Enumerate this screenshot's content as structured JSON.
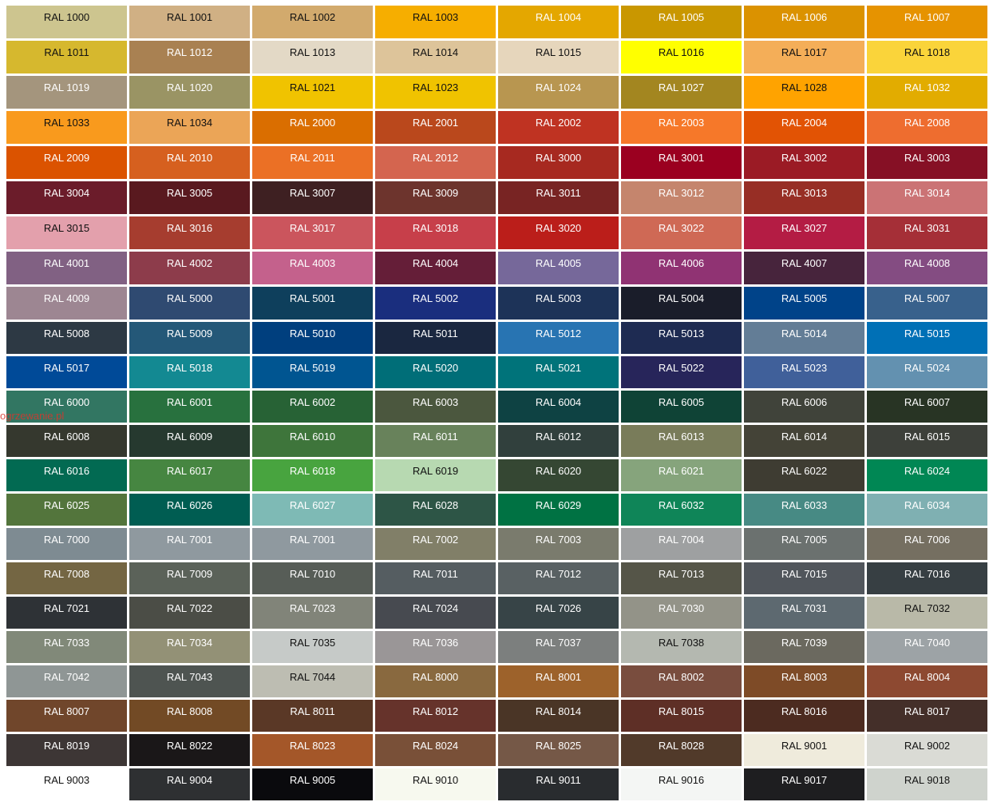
{
  "watermark": "ogrzewanie.pl",
  "rows": [
    [
      {
        "label": "RAL 1000",
        "color": "#CDC58F",
        "dark": true
      },
      {
        "label": "RAL 1001",
        "color": "#D0B084",
        "dark": true
      },
      {
        "label": "RAL 1002",
        "color": "#D2AA6D",
        "dark": true
      },
      {
        "label": "RAL 1003",
        "color": "#F6AE00",
        "dark": true
      },
      {
        "label": "RAL 1004",
        "color": "#E4A700"
      },
      {
        "label": "RAL 1005",
        "color": "#C99700"
      },
      {
        "label": "RAL 1006",
        "color": "#DB9200"
      },
      {
        "label": "RAL 1007",
        "color": "#E69300"
      }
    ],
    [
      {
        "label": "RAL 1011",
        "color": "#D6B82E",
        "dark": true
      },
      {
        "label": "RAL 1012",
        "color": "#A98152"
      },
      {
        "label": "RAL 1013",
        "color": "#E3D9C6",
        "dark": true
      },
      {
        "label": "RAL 1014",
        "color": "#DDC49A",
        "dark": true
      },
      {
        "label": "RAL 1015",
        "color": "#E6D6BC",
        "dark": true
      },
      {
        "label": "RAL 1016",
        "color": "#FFFF00",
        "dark": true
      },
      {
        "label": "RAL 1017",
        "color": "#F4AE58",
        "dark": true
      },
      {
        "label": "RAL 1018",
        "color": "#FAD43A",
        "dark": true
      }
    ],
    [
      {
        "label": "RAL 1019",
        "color": "#A4957D"
      },
      {
        "label": "RAL 1020",
        "color": "#9A9464"
      },
      {
        "label": "RAL 1021",
        "color": "#F0C300",
        "dark": true
      },
      {
        "label": "RAL 1023",
        "color": "#F0C300",
        "dark": true
      },
      {
        "label": "RAL 1024",
        "color": "#B89650"
      },
      {
        "label": "RAL 1027",
        "color": "#A38620"
      },
      {
        "label": "RAL 1028",
        "color": "#FFA300",
        "dark": true
      },
      {
        "label": "RAL 1032",
        "color": "#E2AC00"
      }
    ],
    [
      {
        "label": "RAL 1033",
        "color": "#F99A1D",
        "dark": true
      },
      {
        "label": "RAL 1034",
        "color": "#EBA557",
        "dark": true
      },
      {
        "label": "RAL 2000",
        "color": "#DA6E00"
      },
      {
        "label": "RAL 2001",
        "color": "#BA481C"
      },
      {
        "label": "RAL 2002",
        "color": "#BF3322"
      },
      {
        "label": "RAL 2003",
        "color": "#F67829"
      },
      {
        "label": "RAL 2004",
        "color": "#E25304"
      },
      {
        "label": "RAL 2008",
        "color": "#EE6D2F"
      }
    ],
    [
      {
        "label": "RAL 2009",
        "color": "#DB5300"
      },
      {
        "label": "RAL 2010",
        "color": "#D6601F"
      },
      {
        "label": "RAL 2011",
        "color": "#EB7025"
      },
      {
        "label": "RAL 2012",
        "color": "#D4654F"
      },
      {
        "label": "RAL 3000",
        "color": "#A72920"
      },
      {
        "label": "RAL 3001",
        "color": "#9B0020"
      },
      {
        "label": "RAL 3002",
        "color": "#9B1B25"
      },
      {
        "label": "RAL 3003",
        "color": "#861025"
      }
    ],
    [
      {
        "label": "RAL 3004",
        "color": "#6B1C2A"
      },
      {
        "label": "RAL 3005",
        "color": "#59191F"
      },
      {
        "label": "RAL 3007",
        "color": "#3E2022"
      },
      {
        "label": "RAL 3009",
        "color": "#6D342D"
      },
      {
        "label": "RAL 3011",
        "color": "#782423"
      },
      {
        "label": "RAL 3012",
        "color": "#C5856D"
      },
      {
        "label": "RAL 3013",
        "color": "#972E25"
      },
      {
        "label": "RAL 3014",
        "color": "#CB7375"
      }
    ],
    [
      {
        "label": "RAL 3015",
        "color": "#E3A0AC",
        "dark": true
      },
      {
        "label": "RAL 3016",
        "color": "#A63D2F"
      },
      {
        "label": "RAL 3017",
        "color": "#CB555D"
      },
      {
        "label": "RAL 3018",
        "color": "#C73F4A"
      },
      {
        "label": "RAL 3020",
        "color": "#BB1E1A"
      },
      {
        "label": "RAL 3022",
        "color": "#CF6955"
      },
      {
        "label": "RAL 3027",
        "color": "#B41C44"
      },
      {
        "label": "RAL 3031",
        "color": "#A52F37"
      }
    ],
    [
      {
        "label": "RAL 4001",
        "color": "#816183"
      },
      {
        "label": "RAL 4002",
        "color": "#8D3C4B"
      },
      {
        "label": "RAL 4003",
        "color": "#C4618C"
      },
      {
        "label": "RAL 4004",
        "color": "#651E38"
      },
      {
        "label": "RAL 4005",
        "color": "#76689A"
      },
      {
        "label": "RAL 4006",
        "color": "#903373"
      },
      {
        "label": "RAL 4007",
        "color": "#47243C"
      },
      {
        "label": "RAL 4008",
        "color": "#844C82"
      }
    ],
    [
      {
        "label": "RAL 4009",
        "color": "#9D8692"
      },
      {
        "label": "RAL 5000",
        "color": "#2F4A71"
      },
      {
        "label": "RAL 5001",
        "color": "#0E3F5C"
      },
      {
        "label": "RAL 5002",
        "color": "#1A2E7E"
      },
      {
        "label": "RAL 5003",
        "color": "#1D3358"
      },
      {
        "label": "RAL 5004",
        "color": "#1A1D2A"
      },
      {
        "label": "RAL 5005",
        "color": "#004389"
      },
      {
        "label": "RAL 5007",
        "color": "#38618C"
      }
    ],
    [
      {
        "label": "RAL 5008",
        "color": "#2D3944"
      },
      {
        "label": "RAL 5009",
        "color": "#245878"
      },
      {
        "label": "RAL 5010",
        "color": "#003F7E"
      },
      {
        "label": "RAL 5011",
        "color": "#1A2740"
      },
      {
        "label": "RAL 5012",
        "color": "#2874B2"
      },
      {
        "label": "RAL 5013",
        "color": "#1E2B52"
      },
      {
        "label": "RAL 5014",
        "color": "#637D96"
      },
      {
        "label": "RAL 5015",
        "color": "#0070B6"
      }
    ],
    [
      {
        "label": "RAL 5017",
        "color": "#004A98"
      },
      {
        "label": "RAL 5018",
        "color": "#138992"
      },
      {
        "label": "RAL 5019",
        "color": "#005591"
      },
      {
        "label": "RAL 5020",
        "color": "#006E78"
      },
      {
        "label": "RAL 5021",
        "color": "#00737A"
      },
      {
        "label": "RAL 5022",
        "color": "#27255A"
      },
      {
        "label": "RAL 5023",
        "color": "#40609A"
      },
      {
        "label": "RAL 5024",
        "color": "#6391B0"
      }
    ],
    [
      {
        "label": "RAL 6000",
        "color": "#327662"
      },
      {
        "label": "RAL 6001",
        "color": "#28713E"
      },
      {
        "label": "RAL 6002",
        "color": "#276235"
      },
      {
        "label": "RAL 6003",
        "color": "#4B573E"
      },
      {
        "label": "RAL 6004",
        "color": "#0E4243"
      },
      {
        "label": "RAL 6005",
        "color": "#0F4336"
      },
      {
        "label": "RAL 6006",
        "color": "#40433A"
      },
      {
        "label": "RAL 6007",
        "color": "#283424"
      }
    ],
    [
      {
        "label": "RAL 6008",
        "color": "#35382E"
      },
      {
        "label": "RAL 6009",
        "color": "#26392F"
      },
      {
        "label": "RAL 6010",
        "color": "#3E753B"
      },
      {
        "label": "RAL 6011",
        "color": "#68825B"
      },
      {
        "label": "RAL 6012",
        "color": "#31403D"
      },
      {
        "label": "RAL 6013",
        "color": "#797C5A"
      },
      {
        "label": "RAL 6014",
        "color": "#444337"
      },
      {
        "label": "RAL 6015",
        "color": "#3D403A"
      }
    ],
    [
      {
        "label": "RAL 6016",
        "color": "#026A52"
      },
      {
        "label": "RAL 6017",
        "color": "#468641"
      },
      {
        "label": "RAL 6018",
        "color": "#48A43F"
      },
      {
        "label": "RAL 6019",
        "color": "#B7D9B1",
        "dark": true
      },
      {
        "label": "RAL 6020",
        "color": "#354733"
      },
      {
        "label": "RAL 6021",
        "color": "#86A47C"
      },
      {
        "label": "RAL 6022",
        "color": "#3E3C32"
      },
      {
        "label": "RAL 6024",
        "color": "#008754"
      }
    ],
    [
      {
        "label": "RAL 6025",
        "color": "#53753C"
      },
      {
        "label": "RAL 6026",
        "color": "#005D52"
      },
      {
        "label": "RAL 6027",
        "color": "#7EBAB5"
      },
      {
        "label": "RAL 6028",
        "color": "#2D5546"
      },
      {
        "label": "RAL 6029",
        "color": "#007243"
      },
      {
        "label": "RAL 6032",
        "color": "#0F8558"
      },
      {
        "label": "RAL 6033",
        "color": "#478A84"
      },
      {
        "label": "RAL 6034",
        "color": "#7FB0B2"
      }
    ],
    [
      {
        "label": "RAL 7000",
        "color": "#7E8B92"
      },
      {
        "label": "RAL 7001",
        "color": "#8F999F"
      },
      {
        "label": "RAL 7001",
        "color": "#8F999F"
      },
      {
        "label": "RAL 7002",
        "color": "#817F68"
      },
      {
        "label": "RAL 7003",
        "color": "#7A7B6D"
      },
      {
        "label": "RAL 7004",
        "color": "#9EA0A1"
      },
      {
        "label": "RAL 7005",
        "color": "#6B716F"
      },
      {
        "label": "RAL 7006",
        "color": "#756F61"
      }
    ],
    [
      {
        "label": "RAL 7008",
        "color": "#746643"
      },
      {
        "label": "RAL 7009",
        "color": "#5B6259"
      },
      {
        "label": "RAL 7010",
        "color": "#575D57"
      },
      {
        "label": "RAL 7011",
        "color": "#555D61"
      },
      {
        "label": "RAL 7012",
        "color": "#596163"
      },
      {
        "label": "RAL 7013",
        "color": "#555548"
      },
      {
        "label": "RAL 7015",
        "color": "#51565C"
      },
      {
        "label": "RAL 7016",
        "color": "#373F43"
      }
    ],
    [
      {
        "label": "RAL 7021",
        "color": "#2E3236"
      },
      {
        "label": "RAL 7022",
        "color": "#4B4D46"
      },
      {
        "label": "RAL 7023",
        "color": "#818479"
      },
      {
        "label": "RAL 7024",
        "color": "#474A50"
      },
      {
        "label": "RAL 7026",
        "color": "#374447"
      },
      {
        "label": "RAL 7030",
        "color": "#939388"
      },
      {
        "label": "RAL 7031",
        "color": "#5D6970"
      },
      {
        "label": "RAL 7032",
        "color": "#B9B9A8",
        "dark": true
      }
    ],
    [
      {
        "label": "RAL 7033",
        "color": "#818979"
      },
      {
        "label": "RAL 7034",
        "color": "#939176"
      },
      {
        "label": "RAL 7035",
        "color": "#C6CAC8",
        "dark": true
      },
      {
        "label": "RAL 7036",
        "color": "#9A9697"
      },
      {
        "label": "RAL 7037",
        "color": "#7C7F7E"
      },
      {
        "label": "RAL 7038",
        "color": "#B4B8B0",
        "dark": true
      },
      {
        "label": "RAL 7039",
        "color": "#6B695F"
      },
      {
        "label": "RAL 7040",
        "color": "#9DA3A6"
      }
    ],
    [
      {
        "label": "RAL 7042",
        "color": "#8F9695"
      },
      {
        "label": "RAL 7043",
        "color": "#4E5451"
      },
      {
        "label": "RAL 7044",
        "color": "#BDBDB2",
        "dark": true
      },
      {
        "label": "RAL 8000",
        "color": "#89693F"
      },
      {
        "label": "RAL 8001",
        "color": "#9D622B"
      },
      {
        "label": "RAL 8002",
        "color": "#794D3E"
      },
      {
        "label": "RAL 8003",
        "color": "#7E4B27"
      },
      {
        "label": "RAL 8004",
        "color": "#8D4931"
      }
    ],
    [
      {
        "label": "RAL 8007",
        "color": "#70462B"
      },
      {
        "label": "RAL 8008",
        "color": "#724A25"
      },
      {
        "label": "RAL 8011",
        "color": "#5A3826"
      },
      {
        "label": "RAL 8012",
        "color": "#66332B"
      },
      {
        "label": "RAL 8014",
        "color": "#4A3526"
      },
      {
        "label": "RAL 8015",
        "color": "#5E2F26"
      },
      {
        "label": "RAL 8016",
        "color": "#4C2B20"
      },
      {
        "label": "RAL 8017",
        "color": "#442F29"
      }
    ],
    [
      {
        "label": "RAL 8019",
        "color": "#3D3635"
      },
      {
        "label": "RAL 8022",
        "color": "#1A1718"
      },
      {
        "label": "RAL 8023",
        "color": "#A45729"
      },
      {
        "label": "RAL 8024",
        "color": "#795038"
      },
      {
        "label": "RAL 8025",
        "color": "#755847"
      },
      {
        "label": "RAL 8028",
        "color": "#513A2A"
      },
      {
        "label": "RAL 9001",
        "color": "#EFEBDC",
        "dark": true
      },
      {
        "label": "RAL 9002",
        "color": "#DADBD5",
        "dark": true
      }
    ],
    [
      {
        "label": "RAL 9003",
        "color": "#FFFFFF",
        "dark": true
      },
      {
        "label": "RAL 9004",
        "color": "#2E3032"
      },
      {
        "label": "RAL 9005",
        "color": "#0A0A0D"
      },
      {
        "label": "RAL 9010",
        "color": "#F7F9EF",
        "dark": true
      },
      {
        "label": "RAL 9011",
        "color": "#292C2F"
      },
      {
        "label": "RAL 9016",
        "color": "#F4F6F4",
        "dark": true
      },
      {
        "label": "RAL 9017",
        "color": "#1E1E20"
      },
      {
        "label": "RAL 9018",
        "color": "#CFD3CD",
        "dark": true
      }
    ]
  ]
}
